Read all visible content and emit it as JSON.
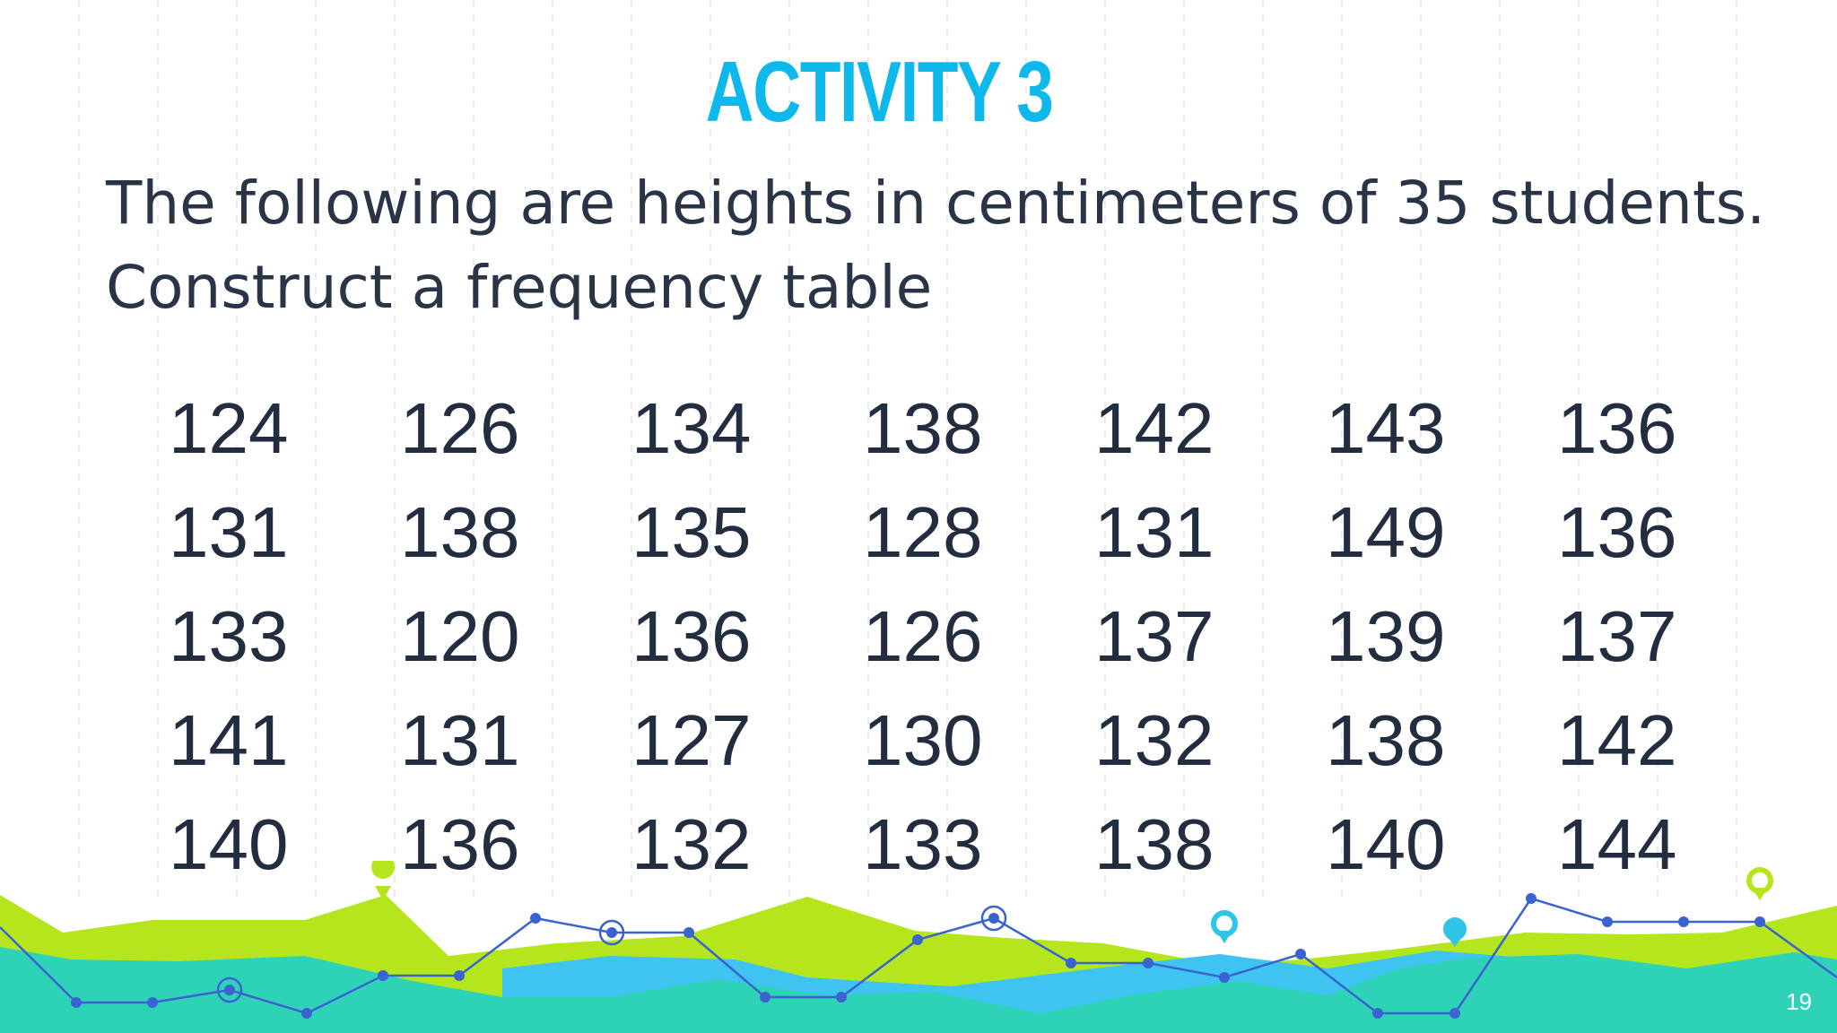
{
  "slide": {
    "title": "ACTIVITY 3",
    "prompt_line_1": "The following are heights in centimeters of 35 students.",
    "prompt_line_2": "Construct a frequency table",
    "rows": [
      [
        "124",
        "126",
        "134",
        "138",
        "142",
        "143",
        "136"
      ],
      [
        "131",
        "138",
        "135",
        "128",
        "131",
        "149",
        "136"
      ],
      [
        "133",
        "120",
        "136",
        "126",
        "137",
        "139",
        "137"
      ],
      [
        "141",
        "131",
        "127",
        "130",
        "132",
        "138",
        "142"
      ],
      [
        "140",
        "136",
        "132",
        "133",
        "138",
        "140",
        "144"
      ]
    ],
    "page_number": "19"
  },
  "colors": {
    "title": "#0fb8ea",
    "text": "#2a3447",
    "lime": "#b5e61d",
    "teal": "#2ed3b7",
    "sky": "#3fc3f0",
    "line": "#3b63d0"
  }
}
